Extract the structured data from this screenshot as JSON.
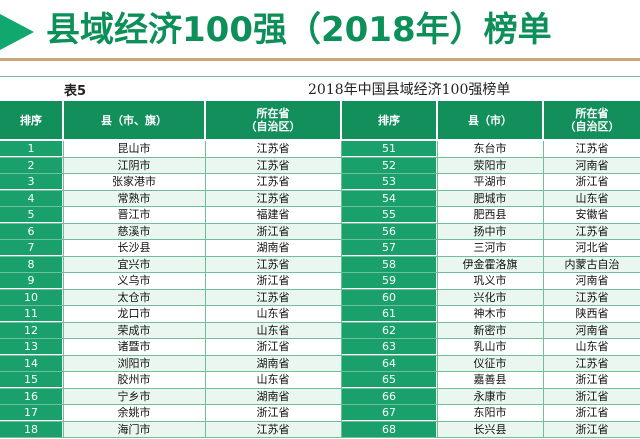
{
  "title": "县域经济100强（2018年）榜单",
  "table_no": "表5",
  "table_caption": "2018年中国县域经济100强榜单",
  "headers": [
    "排序",
    "县（市、旗）",
    "所在省\n（自治区）",
    "排序",
    "县（市）",
    "所在省\n（自治区）"
  ],
  "rows": [
    {
      "r1": "1",
      "c1": "昆山市",
      "p1": "江苏省",
      "r2": "51",
      "c2": "东台市",
      "p2": "江苏省"
    },
    {
      "r1": "2",
      "c1": "江阴市",
      "p1": "江苏省",
      "r2": "52",
      "c2": "荥阳市",
      "p2": "河南省"
    },
    {
      "r1": "3",
      "c1": "张家港市",
      "p1": "江苏省",
      "r2": "53",
      "c2": "平湖市",
      "p2": "浙江省"
    },
    {
      "r1": "4",
      "c1": "常熟市",
      "p1": "江苏省",
      "r2": "54",
      "c2": "肥城市",
      "p2": "山东省"
    },
    {
      "r1": "5",
      "c1": "晋江市",
      "p1": "福建省",
      "r2": "55",
      "c2": "肥西县",
      "p2": "安徽省"
    },
    {
      "r1": "6",
      "c1": "慈溪市",
      "p1": "浙江省",
      "r2": "56",
      "c2": "扬中市",
      "p2": "江苏省"
    },
    {
      "r1": "7",
      "c1": "长沙县",
      "p1": "湖南省",
      "r2": "57",
      "c2": "三河市",
      "p2": "河北省"
    },
    {
      "r1": "8",
      "c1": "宜兴市",
      "p1": "江苏省",
      "r2": "58",
      "c2": "伊金霍洛旗",
      "p2": "内蒙古自治"
    },
    {
      "r1": "9",
      "c1": "义乌市",
      "p1": "浙江省",
      "r2": "59",
      "c2": "巩义市",
      "p2": "河南省"
    },
    {
      "r1": "10",
      "c1": "太仓市",
      "p1": "江苏省",
      "r2": "60",
      "c2": "兴化市",
      "p2": "江苏省"
    },
    {
      "r1": "11",
      "c1": "龙口市",
      "p1": "山东省",
      "r2": "61",
      "c2": "神木市",
      "p2": "陕西省"
    },
    {
      "r1": "12",
      "c1": "荣成市",
      "p1": "山东省",
      "r2": "62",
      "c2": "新密市",
      "p2": "河南省"
    },
    {
      "r1": "13",
      "c1": "诸暨市",
      "p1": "浙江省",
      "r2": "63",
      "c2": "乳山市",
      "p2": "山东省"
    },
    {
      "r1": "14",
      "c1": "浏阳市",
      "p1": "湖南省",
      "r2": "64",
      "c2": "仪征市",
      "p2": "江苏省"
    },
    {
      "r1": "15",
      "c1": "胶州市",
      "p1": "山东省",
      "r2": "65",
      "c2": "嘉善县",
      "p2": "浙江省"
    },
    {
      "r1": "16",
      "c1": "宁乡市",
      "p1": "湖南省",
      "r2": "66",
      "c2": "永康市",
      "p2": "浙江省"
    },
    {
      "r1": "17",
      "c1": "余姚市",
      "p1": "浙江省",
      "r2": "67",
      "c2": "东阳市",
      "p2": "浙江省"
    },
    {
      "r1": "18",
      "c1": "海门市",
      "p1": "江苏省",
      "r2": "68",
      "c2": "长兴县",
      "p2": "浙江省"
    }
  ]
}
